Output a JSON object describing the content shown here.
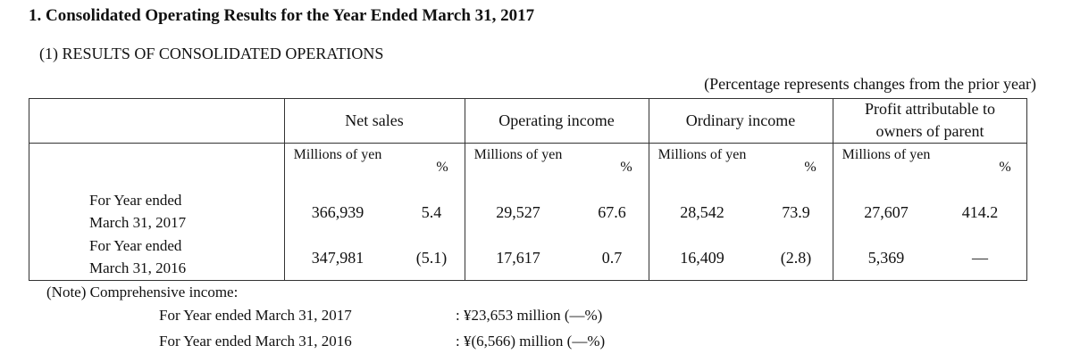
{
  "header": {
    "title": "1. Consolidated Operating Results for the Year Ended March 31, 2017",
    "subtitle": "(1) RESULTS OF CONSOLIDATED OPERATIONS"
  },
  "table": {
    "note": "(Percentage represents changes from the prior year)",
    "columns": [
      {
        "name": "Net sales",
        "unit": "Millions of yen",
        "pct": "%"
      },
      {
        "name": "Operating income",
        "unit": "Millions of yen",
        "pct": "%"
      },
      {
        "name": "Ordinary income",
        "unit": "Millions of yen",
        "pct": "%"
      },
      {
        "name": "Profit attributable to owners of parent",
        "unit": "Millions of yen",
        "pct": "%"
      }
    ],
    "rows": [
      {
        "label": "For Year ended March 31, 2017",
        "values": [
          "366,939",
          "5.4",
          "29,527",
          "67.6",
          "28,542",
          "73.9",
          "27,607",
          "414.2"
        ]
      },
      {
        "label": "For Year ended March 31, 2016",
        "values": [
          "347,981",
          "(5.1)",
          "17,617",
          "0.7",
          "16,409",
          "(2.8)",
          "5,369",
          "―"
        ]
      }
    ]
  },
  "comprehensive_income": {
    "label": "(Note) Comprehensive income:",
    "items": [
      {
        "label": "For Year ended March 31, 2017",
        "value": ":  ¥23,653 million (―%)"
      },
      {
        "label": "For Year ended March 31, 2016",
        "value": ":  ¥(6,566) million (―%)"
      }
    ]
  }
}
